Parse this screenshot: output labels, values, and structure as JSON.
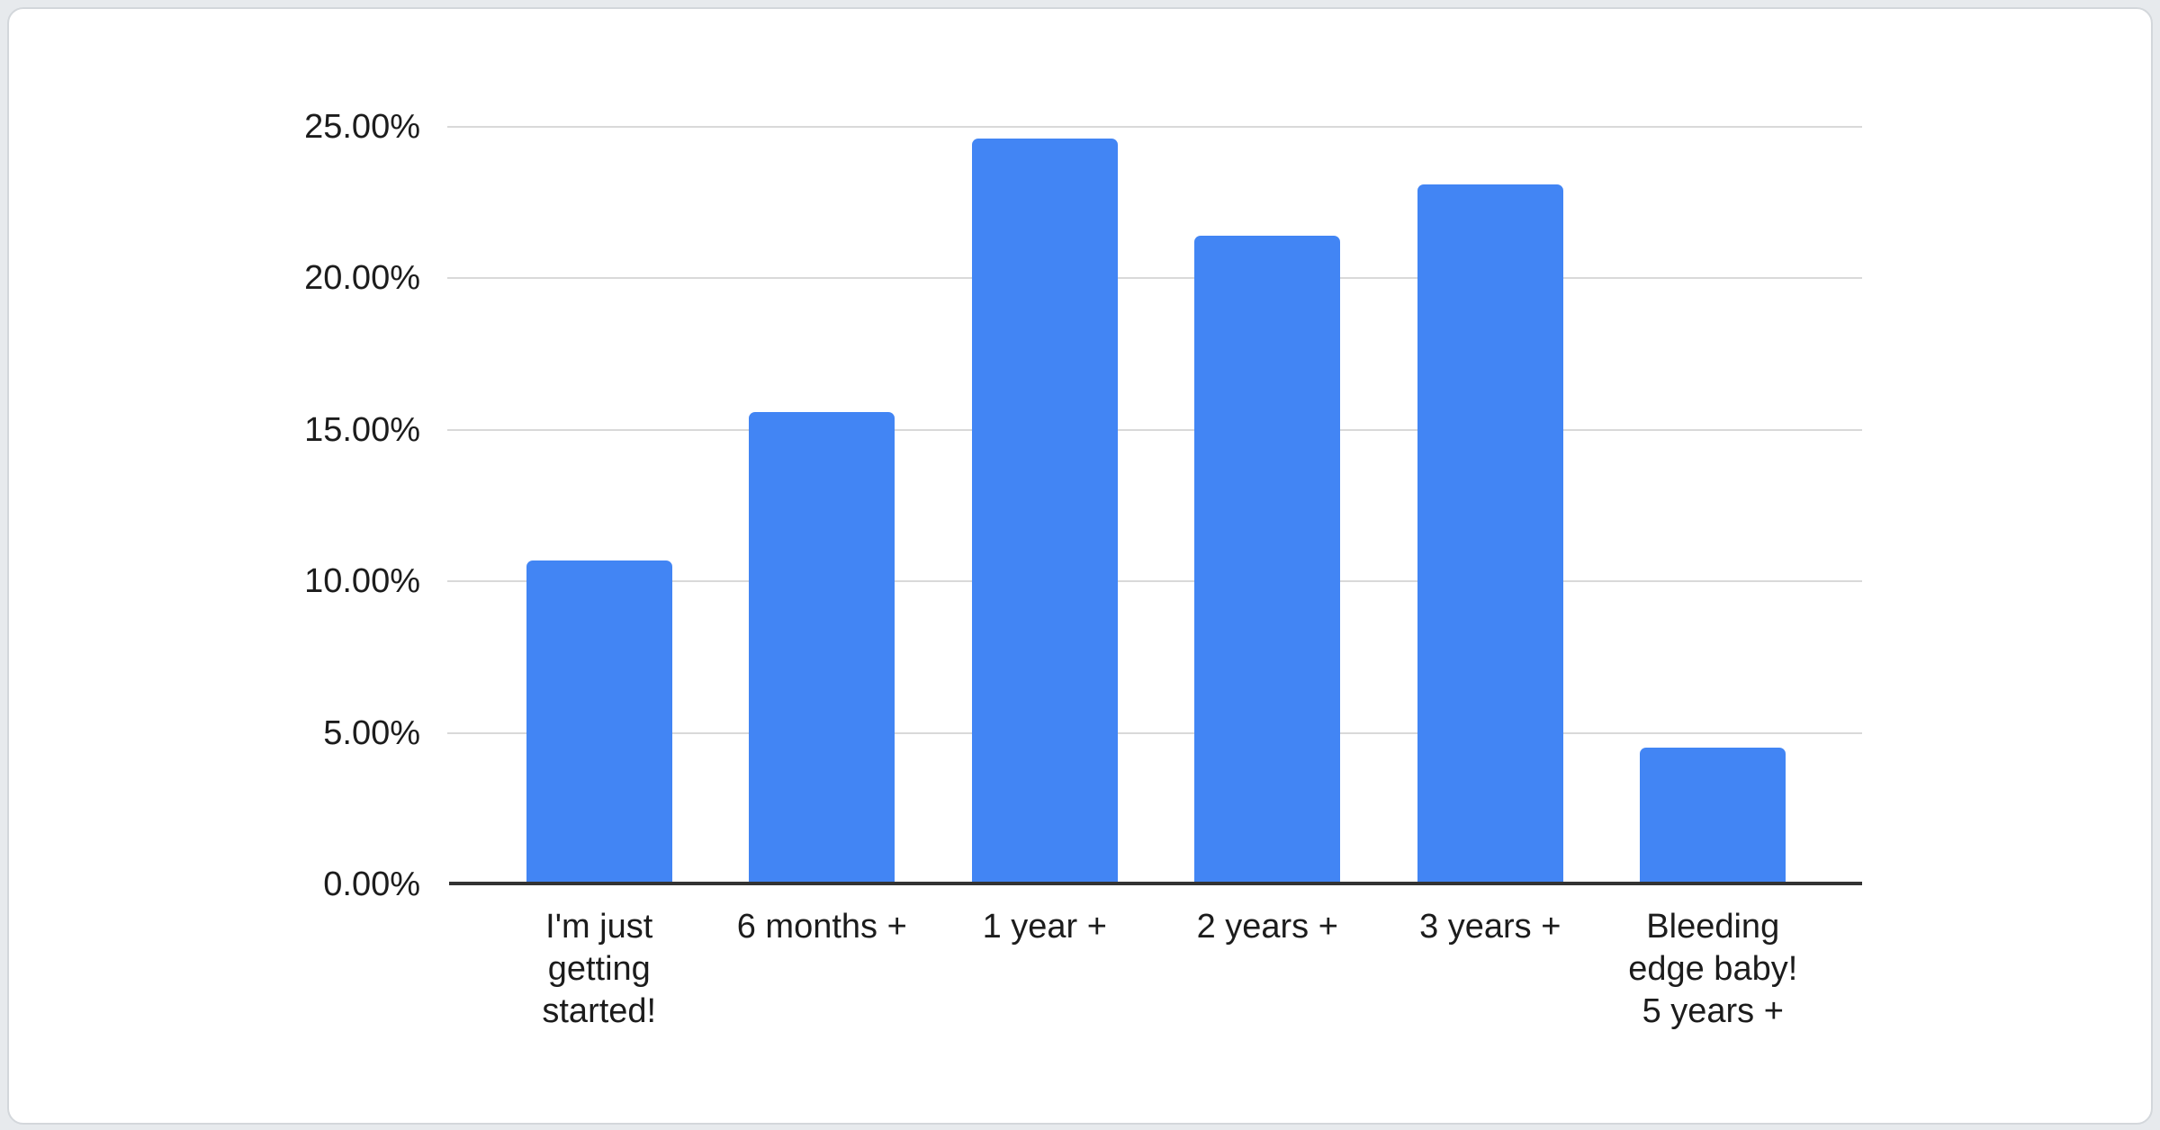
{
  "chart_data": {
    "type": "bar",
    "title": "",
    "xlabel": "",
    "ylabel": "",
    "categories": [
      "I'm just\ngetting\nstarted!",
      "6 months +",
      "1 year +",
      "2 years +",
      "3 years +",
      "Bleeding\nedge baby!\n5 years +"
    ],
    "values": [
      10.7,
      15.6,
      24.6,
      21.4,
      23.1,
      4.5
    ],
    "unit": "%",
    "ylim": [
      0,
      25
    ],
    "y_ticks": [
      {
        "value": 0,
        "label": "0.00%"
      },
      {
        "value": 5,
        "label": "5.00%"
      },
      {
        "value": 10,
        "label": "10.00%"
      },
      {
        "value": 15,
        "label": "15.00%"
      },
      {
        "value": 20,
        "label": "20.00%"
      },
      {
        "value": 25,
        "label": "25.00%"
      }
    ],
    "grid": true,
    "legend": "none",
    "colors": {
      "bar": "#4285f4",
      "gridline": "#d9d9d9",
      "axis_baseline": "#333333",
      "text": "#1c1c1c",
      "card_background": "#ffffff",
      "page_background": "#e7eaed",
      "card_border": "#d3d7db"
    }
  }
}
